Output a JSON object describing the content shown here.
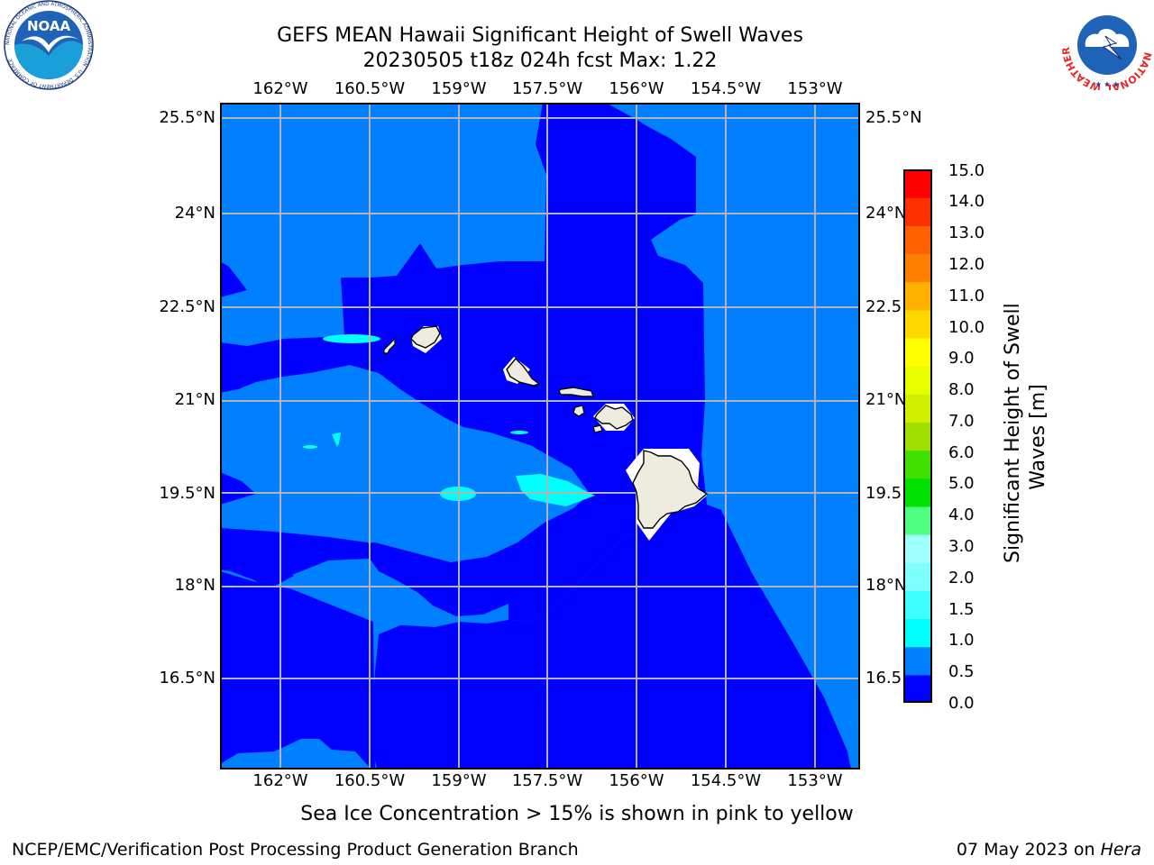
{
  "header": {
    "title_line1": "GEFS MEAN Hawaii Significant Height of Swell Waves",
    "title_line2": "20230505 t18z 024h fcst   Max: 1.22"
  },
  "logos": {
    "left": "NOAA",
    "left_ring_text": "NATIONAL OCEANIC AND ATMOSPHERIC ADMINISTRATION · U.S. DEPARTMENT OF COMMERCE",
    "right_ring_text": "NATIONAL WEATHER SERVICE"
  },
  "map": {
    "lon_labels": [
      "162°W",
      "160.5°W",
      "159°W",
      "157.5°W",
      "156°W",
      "154.5°W",
      "153°W"
    ],
    "lat_labels": [
      "25.5°N",
      "24°N",
      "22.5°N",
      "21°N",
      "19.5°N",
      "18°N",
      "16.5°N"
    ],
    "right_lat_labels": [
      "25.5°N",
      "24°N",
      "22.5",
      "21°N",
      "19.5",
      "18°N",
      "16.5"
    ],
    "colors": {
      "band_0_0_5": "#0000ff",
      "band_0_5_1_0": "#0080ff",
      "band_1_0_1_5": "#00ffff",
      "land": "#eeebdf",
      "grid": "#b4b4b4"
    }
  },
  "colorbar": {
    "label": "Significant Height of Swell Waves [m]",
    "label_line1": "Significant Height of Swell",
    "label_line2": "Waves [m]",
    "ticks": [
      "15.0",
      "14.0",
      "13.0",
      "12.0",
      "11.0",
      "10.0",
      "9.0",
      "8.0",
      "7.0",
      "6.0",
      "5.0",
      "4.0",
      "3.0",
      "2.0",
      "1.5",
      "1.0",
      "0.5",
      "0.0"
    ],
    "colors": [
      "#0000ff",
      "#0080ff",
      "#00ffff",
      "#40ffff",
      "#80ffff",
      "#a0ffff",
      "#50ff80",
      "#00e000",
      "#40e000",
      "#a0e000",
      "#d0f000",
      "#e8ff00",
      "#ffff00",
      "#ffd800",
      "#ffb000",
      "#ff8000",
      "#ff6000",
      "#ff3000",
      "#ff0000"
    ]
  },
  "footer": {
    "note": "Sea Ice Concentration > 15% is shown in pink to yellow",
    "left": "NCEP/EMC/Verification Post Processing Product Generation Branch",
    "right_prefix": "07 May 2023 on ",
    "right_machine": "Hera"
  }
}
